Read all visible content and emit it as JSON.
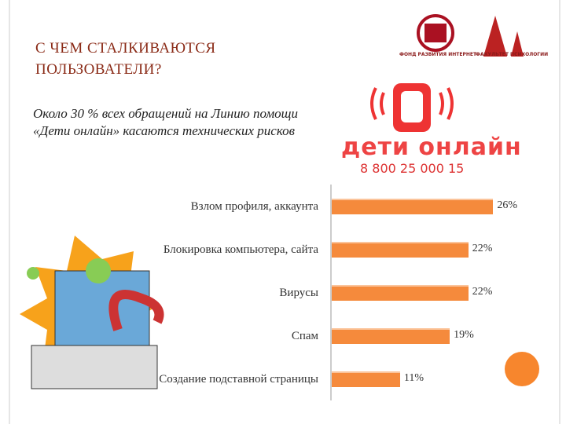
{
  "slide": {
    "title": "С ЧЕМ СТАЛКИВАЮТСЯ ПОЛЬЗОВАТЕЛИ?",
    "text": "Около 30 % всех обращений на Линию помощи «Дети онлайн» касаются технических рисков",
    "logo_left": "ФОНД РАЗВИТИЯ ИНТЕРНЕТ",
    "logo_right": "ФАКУЛЬТЕТ ПСИХОЛОГИИ",
    "brand": "дети онлайн",
    "phone": "8 800 25 000 15"
  },
  "chart_data": {
    "type": "bar",
    "orientation": "horizontal",
    "categories": [
      "Взлом профиля, аккаунта",
      "Блокировка компьютера, сайта",
      "Вирусы",
      "Спам",
      "Создание подставной страницы"
    ],
    "values": [
      26,
      22,
      22,
      19,
      11
    ],
    "value_labels": [
      "26%",
      "22%",
      "22%",
      "19%",
      "11%"
    ],
    "color": "#f58a3c"
  }
}
